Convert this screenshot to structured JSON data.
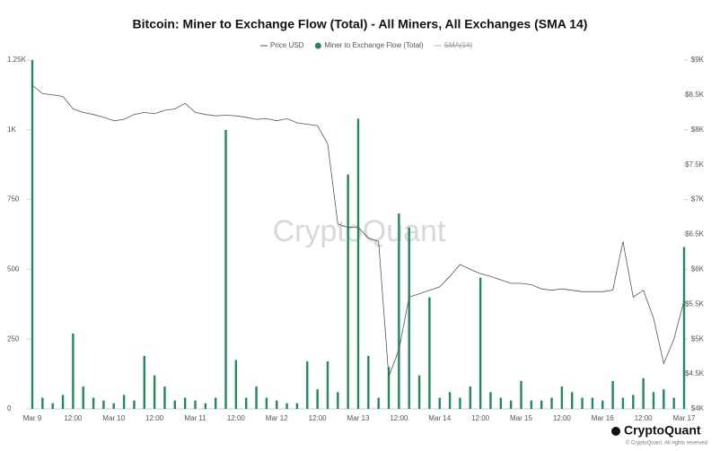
{
  "chart_data": {
    "type": "bar",
    "title": "Bitcoin: Miner to Exchange Flow (Total) - All Miners, All Exchanges (SMA 14)",
    "categories": [
      "Mar 9",
      null,
      null,
      null,
      "12:00",
      null,
      null,
      null,
      "Mar 10",
      null,
      null,
      null,
      "12:00",
      null,
      null,
      null,
      "Mar 11",
      null,
      null,
      null,
      "12:00",
      null,
      null,
      null,
      "Mar 12",
      null,
      null,
      null,
      "12:00",
      null,
      null,
      null,
      "Mar 13",
      null,
      null,
      null,
      "12:00",
      null,
      null,
      null,
      "Mar 14",
      null,
      null,
      null,
      "12:00",
      null,
      null,
      null,
      "Mar 15",
      null,
      null,
      null,
      "12:00",
      null,
      null,
      null,
      "Mar 16",
      null,
      null,
      null,
      "12:00",
      null,
      null,
      null,
      "Mar 17"
    ],
    "series": [
      {
        "name": "Price USD",
        "type": "line",
        "axis": "y2",
        "color": "#555555",
        "values": [
          8640,
          8520,
          8500,
          8480,
          8300,
          8250,
          8220,
          8180,
          8130,
          8150,
          8220,
          8250,
          8230,
          8280,
          8300,
          8380,
          8250,
          8220,
          8200,
          8210,
          8200,
          8180,
          8150,
          8160,
          8130,
          8160,
          8100,
          8080,
          8060,
          7800,
          6650,
          6600,
          6600,
          6450,
          6400,
          4460,
          4850,
          5600,
          5650,
          5700,
          5750,
          5900,
          6070,
          6000,
          5940,
          5900,
          5850,
          5800,
          5800,
          5780,
          5720,
          5700,
          5720,
          5700,
          5680,
          5680,
          5680,
          5700,
          6400,
          5600,
          5700,
          5300,
          4650,
          5000,
          5550
        ]
      },
      {
        "name": "Miner to Exchange Flow (Total)",
        "type": "bar",
        "color": "#1f8b57",
        "values": [
          1250,
          40,
          20,
          50,
          270,
          80,
          40,
          30,
          20,
          50,
          30,
          190,
          120,
          80,
          30,
          40,
          30,
          20,
          40,
          1000,
          175,
          40,
          80,
          40,
          30,
          20,
          20,
          170,
          70,
          170,
          60,
          840,
          1040,
          190,
          40,
          150,
          700,
          650,
          120,
          400,
          40,
          60,
          40,
          80,
          470,
          60,
          40,
          30,
          100,
          30,
          30,
          40,
          80,
          60,
          40,
          40,
          30,
          100,
          40,
          50,
          110,
          60,
          70,
          40,
          580
        ]
      }
    ],
    "legend_hidden": "SMA(14)",
    "ylim": [
      0,
      1250
    ],
    "yticks": [
      0,
      250,
      500,
      750,
      {
        "value": 1000,
        "label": "1K"
      },
      {
        "value": 1250,
        "label": "1.25K"
      }
    ],
    "y2lim": [
      4000,
      9000
    ],
    "y2ticks": [
      {
        "value": 4000,
        "label": "$4K"
      },
      {
        "value": 4500,
        "label": "$4.5K"
      },
      {
        "value": 5000,
        "label": "$5K"
      },
      {
        "value": 5500,
        "label": "$5.5K"
      },
      {
        "value": 6000,
        "label": "$6K"
      },
      {
        "value": 6500,
        "label": "$6.5K"
      },
      {
        "value": 7000,
        "label": "$7K"
      },
      {
        "value": 7500,
        "label": "$7.5K"
      },
      {
        "value": 8000,
        "label": "$8K"
      },
      {
        "value": 8500,
        "label": "$8.5K"
      },
      {
        "value": 9000,
        "label": "$9K"
      }
    ],
    "watermark": "CryptoQuant",
    "footer_logo": "CryptoQuant",
    "footer_copyright": "© CryptoQuant. All rights reserved"
  }
}
